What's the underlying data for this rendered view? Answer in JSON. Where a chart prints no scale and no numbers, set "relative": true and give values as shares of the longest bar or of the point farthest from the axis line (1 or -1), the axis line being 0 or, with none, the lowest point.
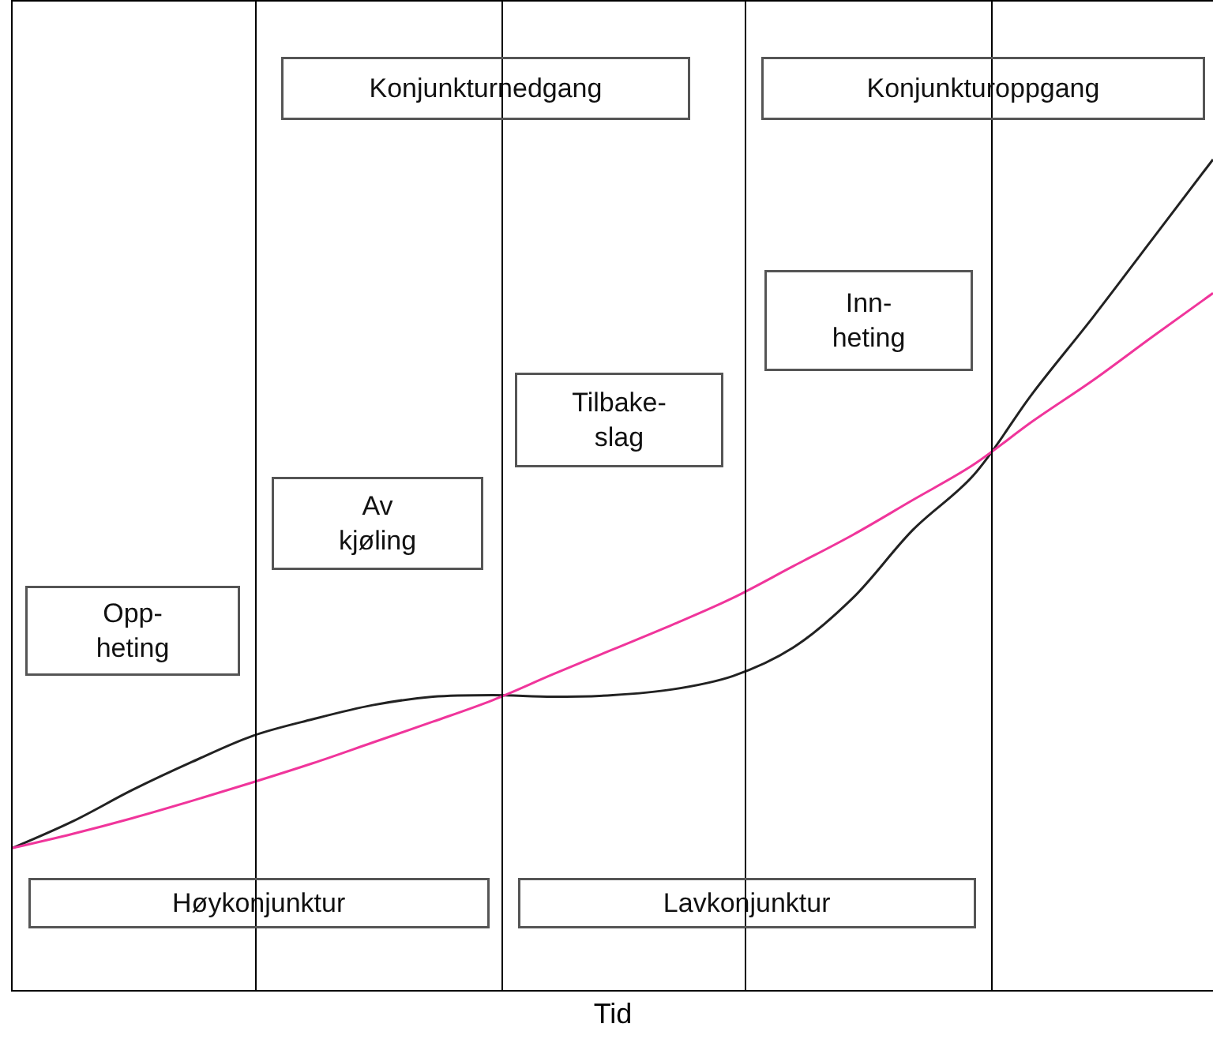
{
  "chart_data": {
    "type": "line",
    "relative": true,
    "xlabel": "Tid",
    "categories": [
      null,
      null,
      null,
      null,
      null,
      null,
      null,
      null,
      null,
      null,
      null,
      null,
      null,
      null,
      null,
      null,
      null,
      null,
      null,
      null,
      null
    ],
    "series": [
      {
        "color": "#222222",
        "values": [
          0.171,
          0.203,
          0.241,
          0.275,
          0.306,
          0.326,
          0.343,
          0.353,
          0.355,
          0.353,
          0.355,
          0.362,
          0.378,
          0.412,
          0.472,
          0.554,
          0.619,
          0.719,
          0.81,
          0.905,
          1
        ]
      },
      {
        "color": "#f0359b",
        "values": [
          0.171,
          0.188,
          0.207,
          0.228,
          0.25,
          0.273,
          0.298,
          0.323,
          0.349,
          0.38,
          0.41,
          0.44,
          0.472,
          0.51,
          0.548,
          0.59,
          0.632,
          0.685,
          0.734,
          0.787,
          0.839
        ]
      }
    ],
    "annotations": [
      "Konjunkturnedgang",
      "Konjunkturoppgang",
      "Opp-\nheting",
      "Av\nkjøling",
      "Tilbake-\nslag",
      "Inn-\nheting",
      "Høykonjunktur",
      "Lavkonjunktur"
    ],
    "legend": false,
    "marker": "none",
    "line_style": "solid",
    "tick_labels": false
  }
}
